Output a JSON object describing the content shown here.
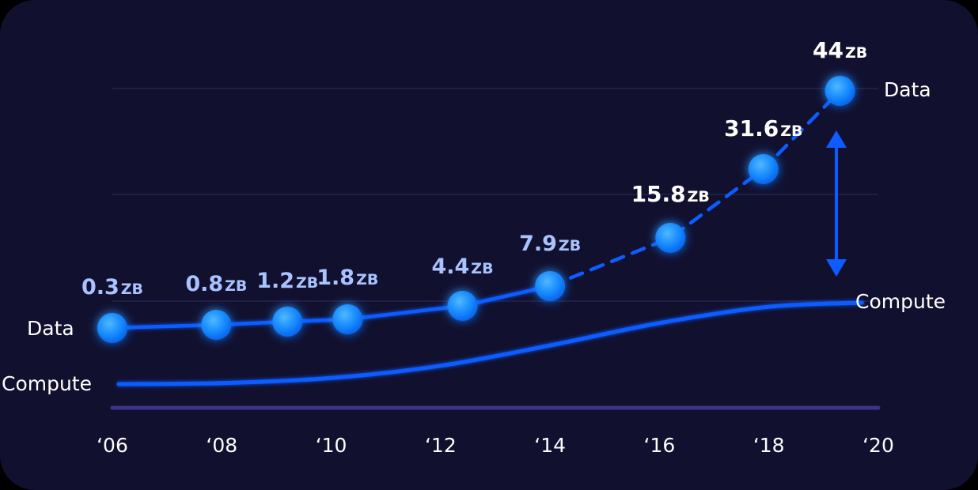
{
  "chart_data": {
    "type": "line",
    "title": "",
    "x_tick_labels": [
      "‘06",
      "‘08",
      "‘10",
      "‘12",
      "‘14",
      "‘16",
      "‘18",
      "‘20"
    ],
    "x_ticks": [
      2006,
      2008,
      2010,
      2012,
      2014,
      2016,
      2018,
      2020
    ],
    "series": [
      {
        "name": "Data",
        "points": [
          {
            "x": 2006.0,
            "y": 0.3,
            "label_num": "0.3",
            "label_unit": "ZB"
          },
          {
            "x": 2007.9,
            "y": 0.8,
            "label_num": "0.8",
            "label_unit": "ZB"
          },
          {
            "x": 2009.2,
            "y": 1.2,
            "label_num": "1.2",
            "label_unit": "ZB"
          },
          {
            "x": 2010.3,
            "y": 1.8,
            "label_num": "1.8",
            "label_unit": "ZB"
          },
          {
            "x": 2012.4,
            "y": 4.4,
            "label_num": "4.4",
            "label_unit": "ZB"
          },
          {
            "x": 2014.0,
            "y": 7.9,
            "label_num": "7.9",
            "label_unit": "ZB"
          },
          {
            "x": 2016.2,
            "y": 15.8,
            "label_num": "15.8",
            "label_unit": "ZB"
          },
          {
            "x": 2017.9,
            "y": 31.6,
            "label_num": "31.6",
            "label_unit": "ZB"
          },
          {
            "x": 2019.3,
            "y": 44,
            "label_num": "44",
            "label_unit": "ZB"
          }
        ],
        "solid_until_index": 5,
        "start_label": "Data",
        "end_label": "Data"
      },
      {
        "name": "Compute",
        "points": [
          {
            "x": 2006.0,
            "y": 0.0
          },
          {
            "x": 2008.0,
            "y": 0.05
          },
          {
            "x": 2010.0,
            "y": 0.3
          },
          {
            "x": 2012.0,
            "y": 0.9
          },
          {
            "x": 2014.0,
            "y": 1.9
          },
          {
            "x": 2016.0,
            "y": 3.0
          },
          {
            "x": 2018.0,
            "y": 3.8
          },
          {
            "x": 2019.7,
            "y": 4.0
          }
        ],
        "start_label": "Compute",
        "end_label": "Compute"
      }
    ],
    "xlim": [
      2006,
      2020
    ],
    "grid": true,
    "gap_arrow": true
  },
  "colors": {
    "background": "#12102f",
    "grid": "#25234d",
    "axis": "#3b3588",
    "line": "#0d5cff",
    "dot": "#1289ff",
    "early_label": "#a9c3ff",
    "late_label": "#ffffff",
    "text": "#ffffff"
  }
}
